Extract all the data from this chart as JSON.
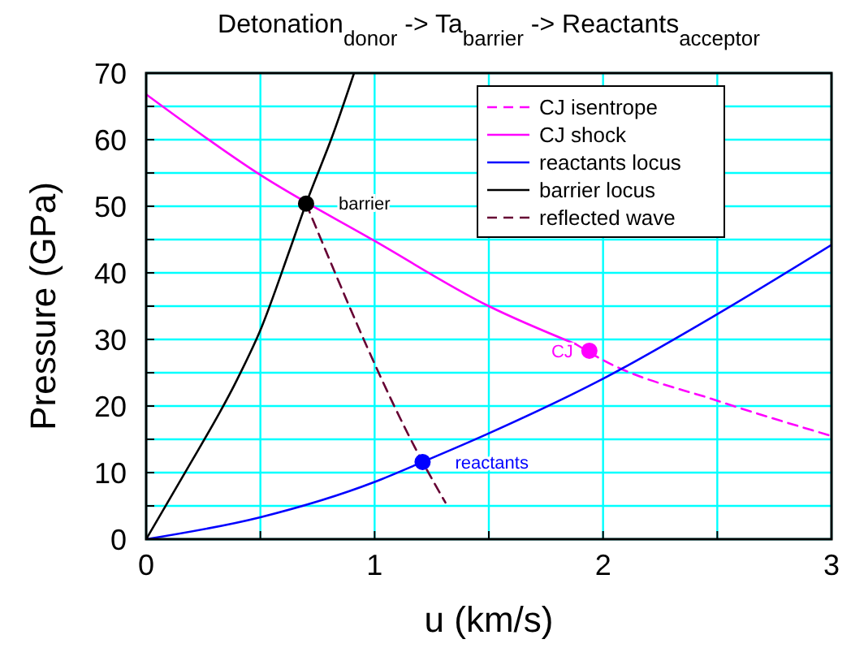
{
  "chart_data": {
    "type": "line",
    "title": "Detonation$_{donor}$ -> Ta$_{barrier}$ -> Reactants$_{acceptor}$",
    "xlabel": "u (km/s)",
    "ylabel": "Pressure (GPa)",
    "xlim": [
      0,
      3
    ],
    "ylim": [
      0,
      70
    ],
    "xticks": [
      0,
      {
        "value": 0.5,
        "label": null
      },
      1,
      {
        "value": 1.5,
        "label": null
      },
      2,
      {
        "value": 2.5,
        "label": null
      },
      3
    ],
    "yticks": [
      0,
      {
        "value": 5,
        "label": null
      },
      10,
      {
        "value": 15,
        "label": null
      },
      20,
      {
        "value": 25,
        "label": null
      },
      30,
      {
        "value": 35,
        "label": null
      },
      40,
      {
        "value": 45,
        "label": null
      },
      50,
      {
        "value": 55,
        "label": null
      },
      60,
      {
        "value": 65,
        "label": null
      },
      70
    ],
    "grid": true,
    "legend": "top right",
    "marker": "none",
    "series": [
      {
        "name": "CJ isentrope",
        "color": "#ff00ff",
        "line_style": "dashed",
        "x": [
          1.88,
          2.0,
          2.5,
          3.0
        ],
        "values": [
          29.3,
          26.9,
          20.8,
          15.5
        ]
      },
      {
        "name": "CJ shock",
        "color": "#ff00ff",
        "line_style": "solid",
        "x": [
          0,
          0.5,
          1.0,
          1.5,
          1.88
        ],
        "values": [
          66.8,
          54.7,
          44.8,
          35.0,
          29.3
        ]
      },
      {
        "name": "reactants locus",
        "color": "#0000ff",
        "line_style": "solid",
        "x": [
          0,
          0.5,
          1.0,
          1.21,
          1.5,
          2.0,
          2.5,
          3.0
        ],
        "values": [
          0,
          3.3,
          8.6,
          11.6,
          15.9,
          24.1,
          33.8,
          44.2
        ]
      },
      {
        "name": "barrier locus",
        "color": "#000000",
        "line_style": "solid",
        "x": [
          0,
          0.16,
          0.4,
          0.5,
          0.63,
          0.7,
          0.82,
          0.91
        ],
        "values": [
          0,
          9.4,
          24.1,
          31.4,
          43.6,
          50.4,
          61.0,
          70
        ]
      },
      {
        "name": "reflected wave",
        "color": "#660033",
        "line_style": "dashed",
        "x": [
          0.7,
          1.21,
          1.31
        ],
        "values": [
          50.4,
          11.6,
          5.5
        ]
      },
      {
        "type": "scatter",
        "marker": "circle",
        "color": "#000000",
        "x": [
          0.7
        ],
        "values": [
          50.4
        ]
      },
      {
        "type": "scatter",
        "marker": "circle",
        "color": "#0000ff",
        "x": [
          1.21
        ],
        "values": [
          11.6
        ]
      },
      {
        "type": "scatter",
        "marker": "circle",
        "color": "#ff00ff",
        "x": [
          1.94
        ],
        "values": [
          28.3
        ]
      }
    ],
    "annotations": [
      {
        "text": "barrier",
        "x": 0.7,
        "y": 50.4
      },
      {
        "text": "reactants",
        "x": 1.21,
        "y": 11.6
      },
      {
        "text": "CJ",
        "x": 1.94,
        "y": 28.3
      }
    ]
  }
}
